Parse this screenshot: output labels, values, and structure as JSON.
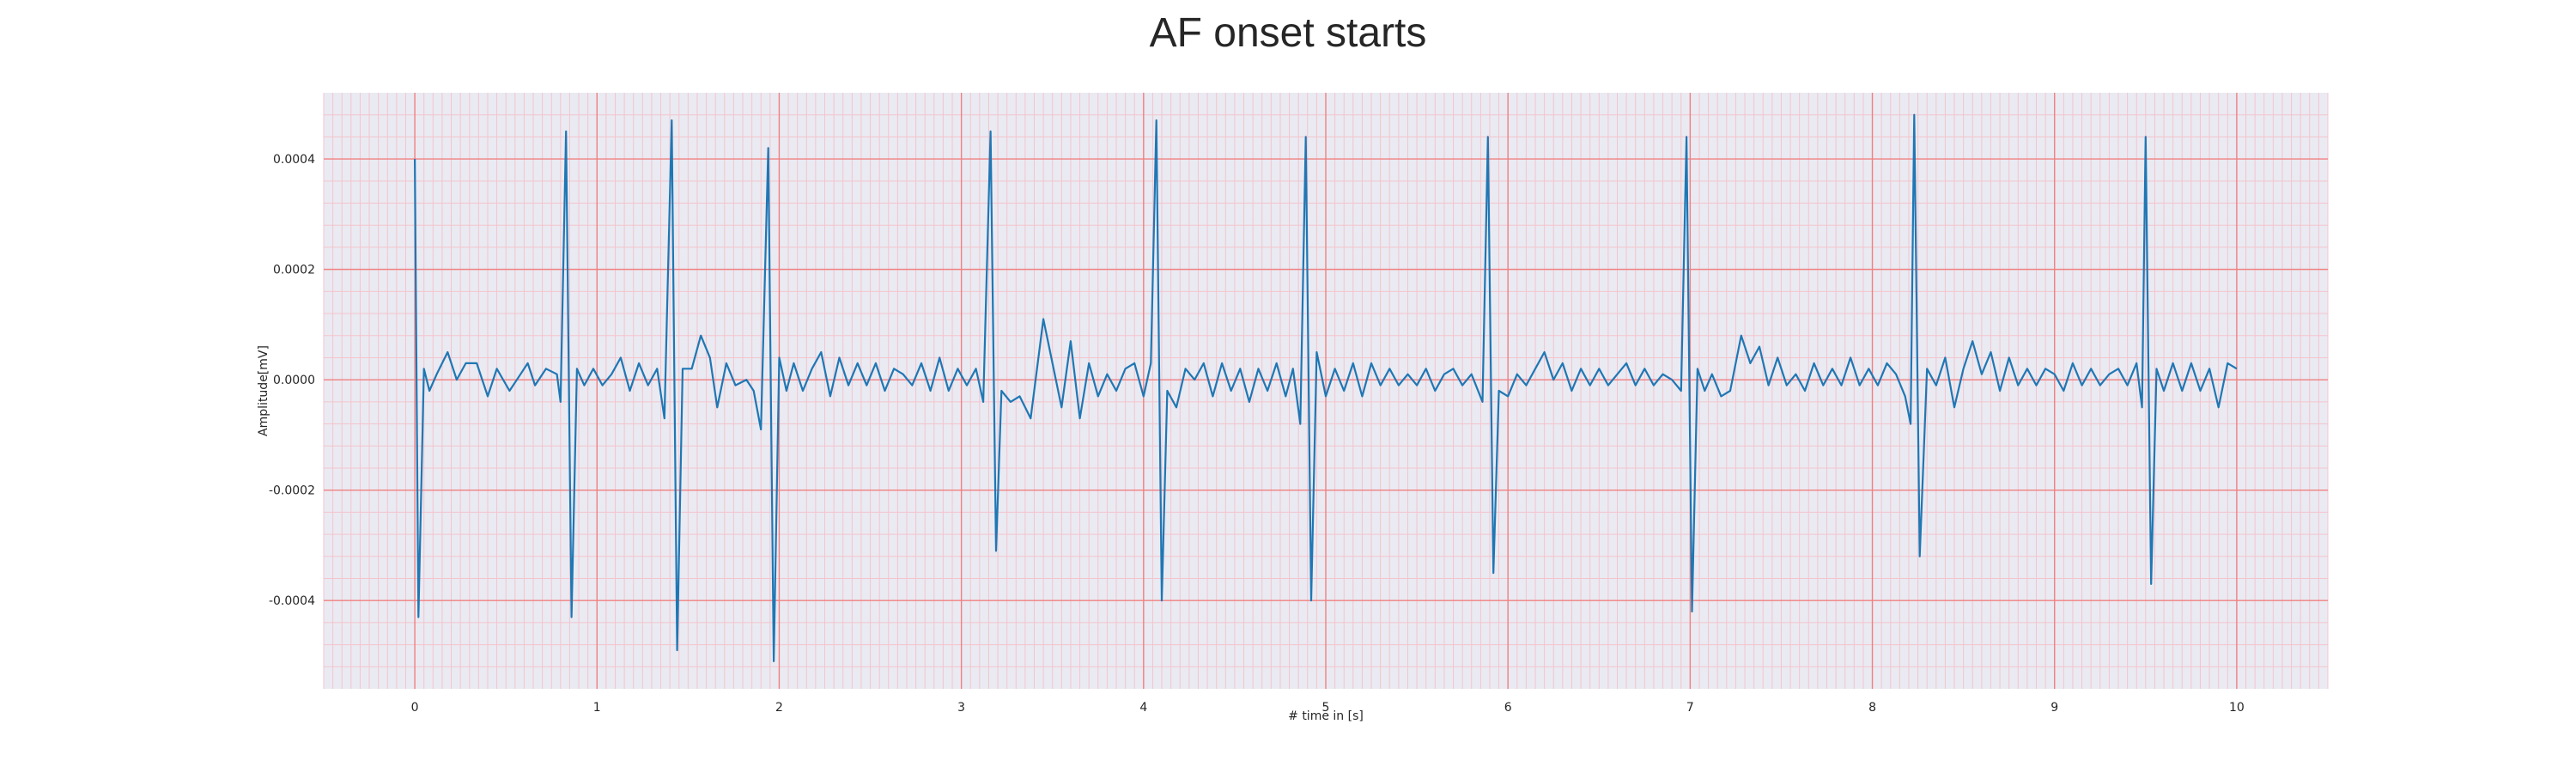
{
  "chart_data": {
    "type": "line",
    "title": "AF onset starts",
    "xlabel": "# time in [s]",
    "ylabel": "Amplitude[mV]",
    "xlim": [
      -0.5,
      10.5
    ],
    "ylim": [
      -0.00056,
      0.00052
    ],
    "x_ticks": [
      0,
      1,
      2,
      3,
      4,
      5,
      6,
      7,
      8,
      9,
      10
    ],
    "x_tick_labels": [
      "0",
      "1",
      "2",
      "3",
      "4",
      "5",
      "6",
      "7",
      "8",
      "9",
      "10"
    ],
    "y_ticks": [
      -0.0004,
      -0.0002,
      0,
      0.0002,
      0.0004
    ],
    "y_tick_labels": [
      "-0.0004",
      "-0.0002",
      "0.0000",
      "0.0002",
      "0.0004"
    ],
    "grid": true,
    "minor_grid": true,
    "colors": {
      "line": "#1f77b4",
      "background": "#eaeaf2",
      "major_grid": "#f08080",
      "minor_grid": "#f4c4cc"
    },
    "series": [
      {
        "values": [
          [
            0.0,
            0.0004
          ],
          [
            0.02,
            -0.00043
          ],
          [
            0.05,
            2e-05
          ],
          [
            0.08,
            -2e-05
          ],
          [
            0.12,
            1e-05
          ],
          [
            0.18,
            5e-05
          ],
          [
            0.23,
            0.0
          ],
          [
            0.28,
            3e-05
          ],
          [
            0.34,
            3e-05
          ],
          [
            0.4,
            -3e-05
          ],
          [
            0.45,
            2e-05
          ],
          [
            0.52,
            -2e-05
          ],
          [
            0.58,
            1e-05
          ],
          [
            0.62,
            3e-05
          ],
          [
            0.66,
            -1e-05
          ],
          [
            0.72,
            2e-05
          ],
          [
            0.78,
            1e-05
          ],
          [
            0.8,
            -4e-05
          ],
          [
            0.83,
            0.00045
          ],
          [
            0.86,
            -0.00043
          ],
          [
            0.89,
            2e-05
          ],
          [
            0.93,
            -1e-05
          ],
          [
            0.98,
            2e-05
          ],
          [
            1.03,
            -1e-05
          ],
          [
            1.08,
            1e-05
          ],
          [
            1.13,
            4e-05
          ],
          [
            1.18,
            -2e-05
          ],
          [
            1.23,
            3e-05
          ],
          [
            1.28,
            -1e-05
          ],
          [
            1.33,
            2e-05
          ],
          [
            1.37,
            -7e-05
          ],
          [
            1.41,
            0.00047
          ],
          [
            1.44,
            -0.00049
          ],
          [
            1.47,
            2e-05
          ],
          [
            1.52,
            2e-05
          ],
          [
            1.57,
            8e-05
          ],
          [
            1.62,
            4e-05
          ],
          [
            1.66,
            -5e-05
          ],
          [
            1.71,
            3e-05
          ],
          [
            1.76,
            -1e-05
          ],
          [
            1.82,
            0.0
          ],
          [
            1.86,
            -2e-05
          ],
          [
            1.9,
            -9e-05
          ],
          [
            1.94,
            0.00042
          ],
          [
            1.97,
            -0.00051
          ],
          [
            2.0,
            4e-05
          ],
          [
            2.04,
            -2e-05
          ],
          [
            2.08,
            3e-05
          ],
          [
            2.13,
            -2e-05
          ],
          [
            2.18,
            2e-05
          ],
          [
            2.23,
            5e-05
          ],
          [
            2.28,
            -3e-05
          ],
          [
            2.33,
            4e-05
          ],
          [
            2.38,
            -1e-05
          ],
          [
            2.43,
            3e-05
          ],
          [
            2.48,
            -1e-05
          ],
          [
            2.53,
            3e-05
          ],
          [
            2.58,
            -2e-05
          ],
          [
            2.63,
            2e-05
          ],
          [
            2.68,
            1e-05
          ],
          [
            2.73,
            -1e-05
          ],
          [
            2.78,
            3e-05
          ],
          [
            2.83,
            -2e-05
          ],
          [
            2.88,
            4e-05
          ],
          [
            2.93,
            -2e-05
          ],
          [
            2.98,
            2e-05
          ],
          [
            3.03,
            -1e-05
          ],
          [
            3.08,
            2e-05
          ],
          [
            3.12,
            -4e-05
          ],
          [
            3.16,
            0.00045
          ],
          [
            3.19,
            -0.00031
          ],
          [
            3.22,
            -2e-05
          ],
          [
            3.27,
            -4e-05
          ],
          [
            3.32,
            -3e-05
          ],
          [
            3.38,
            -7e-05
          ],
          [
            3.45,
            0.00011
          ],
          [
            3.5,
            3e-05
          ],
          [
            3.55,
            -5e-05
          ],
          [
            3.6,
            7e-05
          ],
          [
            3.65,
            -7e-05
          ],
          [
            3.7,
            3e-05
          ],
          [
            3.75,
            -3e-05
          ],
          [
            3.8,
            1e-05
          ],
          [
            3.85,
            -2e-05
          ],
          [
            3.9,
            2e-05
          ],
          [
            3.95,
            3e-05
          ],
          [
            4.0,
            -3e-05
          ],
          [
            4.04,
            3e-05
          ],
          [
            4.07,
            0.00047
          ],
          [
            4.1,
            -0.0004
          ],
          [
            4.13,
            -2e-05
          ],
          [
            4.18,
            -5e-05
          ],
          [
            4.23,
            2e-05
          ],
          [
            4.28,
            0.0
          ],
          [
            4.33,
            3e-05
          ],
          [
            4.38,
            -3e-05
          ],
          [
            4.43,
            3e-05
          ],
          [
            4.48,
            -2e-05
          ],
          [
            4.53,
            2e-05
          ],
          [
            4.58,
            -4e-05
          ],
          [
            4.63,
            2e-05
          ],
          [
            4.68,
            -2e-05
          ],
          [
            4.73,
            3e-05
          ],
          [
            4.78,
            -3e-05
          ],
          [
            4.82,
            2e-05
          ],
          [
            4.86,
            -8e-05
          ],
          [
            4.89,
            0.00044
          ],
          [
            4.92,
            -0.0004
          ],
          [
            4.95,
            5e-05
          ],
          [
            5.0,
            -3e-05
          ],
          [
            5.05,
            2e-05
          ],
          [
            5.1,
            -2e-05
          ],
          [
            5.15,
            3e-05
          ],
          [
            5.2,
            -3e-05
          ],
          [
            5.25,
            3e-05
          ],
          [
            5.3,
            -1e-05
          ],
          [
            5.35,
            2e-05
          ],
          [
            5.4,
            -1e-05
          ],
          [
            5.45,
            1e-05
          ],
          [
            5.5,
            -1e-05
          ],
          [
            5.55,
            2e-05
          ],
          [
            5.6,
            -2e-05
          ],
          [
            5.65,
            1e-05
          ],
          [
            5.7,
            2e-05
          ],
          [
            5.75,
            -1e-05
          ],
          [
            5.8,
            1e-05
          ],
          [
            5.86,
            -4e-05
          ],
          [
            5.89,
            0.00044
          ],
          [
            5.92,
            -0.00035
          ],
          [
            5.95,
            -2e-05
          ],
          [
            6.0,
            -3e-05
          ],
          [
            6.05,
            1e-05
          ],
          [
            6.1,
            -1e-05
          ],
          [
            6.15,
            2e-05
          ],
          [
            6.2,
            5e-05
          ],
          [
            6.25,
            0.0
          ],
          [
            6.3,
            3e-05
          ],
          [
            6.35,
            -2e-05
          ],
          [
            6.4,
            2e-05
          ],
          [
            6.45,
            -1e-05
          ],
          [
            6.5,
            2e-05
          ],
          [
            6.55,
            -1e-05
          ],
          [
            6.6,
            1e-05
          ],
          [
            6.65,
            3e-05
          ],
          [
            6.7,
            -1e-05
          ],
          [
            6.75,
            2e-05
          ],
          [
            6.8,
            -1e-05
          ],
          [
            6.85,
            1e-05
          ],
          [
            6.9,
            0.0
          ],
          [
            6.95,
            -2e-05
          ],
          [
            6.98,
            0.00044
          ],
          [
            7.01,
            -0.00042
          ],
          [
            7.04,
            2e-05
          ],
          [
            7.08,
            -2e-05
          ],
          [
            7.12,
            1e-05
          ],
          [
            7.17,
            -3e-05
          ],
          [
            7.22,
            -2e-05
          ],
          [
            7.28,
            8e-05
          ],
          [
            7.33,
            3e-05
          ],
          [
            7.38,
            6e-05
          ],
          [
            7.43,
            -1e-05
          ],
          [
            7.48,
            4e-05
          ],
          [
            7.53,
            -1e-05
          ],
          [
            7.58,
            1e-05
          ],
          [
            7.63,
            -2e-05
          ],
          [
            7.68,
            3e-05
          ],
          [
            7.73,
            -1e-05
          ],
          [
            7.78,
            2e-05
          ],
          [
            7.83,
            -1e-05
          ],
          [
            7.88,
            4e-05
          ],
          [
            7.93,
            -1e-05
          ],
          [
            7.98,
            2e-05
          ],
          [
            8.03,
            -1e-05
          ],
          [
            8.08,
            3e-05
          ],
          [
            8.13,
            1e-05
          ],
          [
            8.18,
            -3e-05
          ],
          [
            8.21,
            -8e-05
          ],
          [
            8.23,
            0.00048
          ],
          [
            8.26,
            -0.00032
          ],
          [
            8.3,
            2e-05
          ],
          [
            8.35,
            -1e-05
          ],
          [
            8.4,
            4e-05
          ],
          [
            8.45,
            -5e-05
          ],
          [
            8.5,
            2e-05
          ],
          [
            8.55,
            7e-05
          ],
          [
            8.6,
            1e-05
          ],
          [
            8.65,
            5e-05
          ],
          [
            8.7,
            -2e-05
          ],
          [
            8.75,
            4e-05
          ],
          [
            8.8,
            -1e-05
          ],
          [
            8.85,
            2e-05
          ],
          [
            8.9,
            -1e-05
          ],
          [
            8.95,
            2e-05
          ],
          [
            9.0,
            1e-05
          ],
          [
            9.05,
            -2e-05
          ],
          [
            9.1,
            3e-05
          ],
          [
            9.15,
            -1e-05
          ],
          [
            9.2,
            2e-05
          ],
          [
            9.25,
            -1e-05
          ],
          [
            9.3,
            1e-05
          ],
          [
            9.35,
            2e-05
          ],
          [
            9.4,
            -1e-05
          ],
          [
            9.45,
            3e-05
          ],
          [
            9.48,
            -5e-05
          ],
          [
            9.5,
            0.00044
          ],
          [
            9.53,
            -0.00037
          ],
          [
            9.56,
            2e-05
          ],
          [
            9.6,
            -2e-05
          ],
          [
            9.65,
            3e-05
          ],
          [
            9.7,
            -2e-05
          ],
          [
            9.75,
            3e-05
          ],
          [
            9.8,
            -2e-05
          ],
          [
            9.85,
            2e-05
          ],
          [
            9.9,
            -5e-05
          ],
          [
            9.95,
            3e-05
          ],
          [
            10.0,
            2e-05
          ]
        ]
      }
    ]
  }
}
